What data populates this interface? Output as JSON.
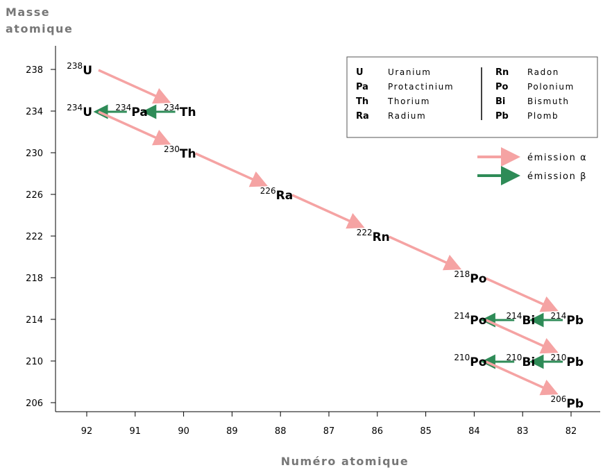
{
  "axes": {
    "y_title_lines": [
      "Masse",
      "atomique"
    ],
    "x_title": "Numéro atomique",
    "y_ticks": [
      238,
      234,
      230,
      226,
      222,
      218,
      214,
      210,
      206
    ],
    "x_ticks": [
      92,
      91,
      90,
      89,
      88,
      87,
      86,
      85,
      84,
      83,
      82
    ]
  },
  "colors": {
    "alpha": "#f5a3a3",
    "beta": "#2e8b57",
    "axis": "#000000",
    "title": "#777777"
  },
  "nuclides": [
    {
      "id": "u238",
      "z": 92,
      "a": 238,
      "mass": "238",
      "symbol": "U"
    },
    {
      "id": "th234",
      "z": 90,
      "a": 234,
      "mass": "234",
      "symbol": "Th"
    },
    {
      "id": "pa234",
      "z": 91,
      "a": 234,
      "mass": "234",
      "symbol": "Pa"
    },
    {
      "id": "u234",
      "z": 92,
      "a": 234,
      "mass": "234",
      "symbol": "U"
    },
    {
      "id": "th230",
      "z": 90,
      "a": 230,
      "mass": "230",
      "symbol": "Th"
    },
    {
      "id": "ra226",
      "z": 88,
      "a": 226,
      "mass": "226",
      "symbol": "Ra"
    },
    {
      "id": "rn222",
      "z": 86,
      "a": 222,
      "mass": "222",
      "symbol": "Rn"
    },
    {
      "id": "po218",
      "z": 84,
      "a": 218,
      "mass": "218",
      "symbol": "Po"
    },
    {
      "id": "pb214",
      "z": 82,
      "a": 214,
      "mass": "214",
      "symbol": "Pb"
    },
    {
      "id": "bi214",
      "z": 83,
      "a": 214,
      "mass": "214",
      "symbol": "Bi"
    },
    {
      "id": "po214",
      "z": 84,
      "a": 214,
      "mass": "214",
      "symbol": "Po"
    },
    {
      "id": "pb210",
      "z": 82,
      "a": 210,
      "mass": "210",
      "symbol": "Pb"
    },
    {
      "id": "bi210",
      "z": 83,
      "a": 210,
      "mass": "210",
      "symbol": "Bi"
    },
    {
      "id": "po210",
      "z": 84,
      "a": 210,
      "mass": "210",
      "symbol": "Po"
    },
    {
      "id": "pb206",
      "z": 82,
      "a": 206,
      "mass": "206",
      "symbol": "Pb"
    }
  ],
  "decays": [
    {
      "from": "u238",
      "to": "th234",
      "type": "alpha"
    },
    {
      "from": "th234",
      "to": "pa234",
      "type": "beta"
    },
    {
      "from": "pa234",
      "to": "u234",
      "type": "beta"
    },
    {
      "from": "u234",
      "to": "th230",
      "type": "alpha"
    },
    {
      "from": "th230",
      "to": "ra226",
      "type": "alpha"
    },
    {
      "from": "ra226",
      "to": "rn222",
      "type": "alpha"
    },
    {
      "from": "rn222",
      "to": "po218",
      "type": "alpha"
    },
    {
      "from": "po218",
      "to": "pb214",
      "type": "alpha"
    },
    {
      "from": "pb214",
      "to": "bi214",
      "type": "beta"
    },
    {
      "from": "bi214",
      "to": "po214",
      "type": "beta"
    },
    {
      "from": "po214",
      "to": "pb210",
      "type": "alpha"
    },
    {
      "from": "pb210",
      "to": "bi210",
      "type": "beta"
    },
    {
      "from": "bi210",
      "to": "po210",
      "type": "beta"
    },
    {
      "from": "po210",
      "to": "pb206",
      "type": "alpha"
    }
  ],
  "legend": {
    "left": [
      {
        "symbol": "U",
        "name": "Uranium"
      },
      {
        "symbol": "Pa",
        "name": "Protactinium"
      },
      {
        "symbol": "Th",
        "name": "Thorium"
      },
      {
        "symbol": "Ra",
        "name": "Radium"
      }
    ],
    "right": [
      {
        "symbol": "Rn",
        "name": "Radon"
      },
      {
        "symbol": "Po",
        "name": "Polonium"
      },
      {
        "symbol": "Bi",
        "name": "Bismuth"
      },
      {
        "symbol": "Pb",
        "name": "Plomb"
      }
    ]
  },
  "emission_legend": {
    "alpha_label": "émission α",
    "beta_label": "émission β"
  }
}
